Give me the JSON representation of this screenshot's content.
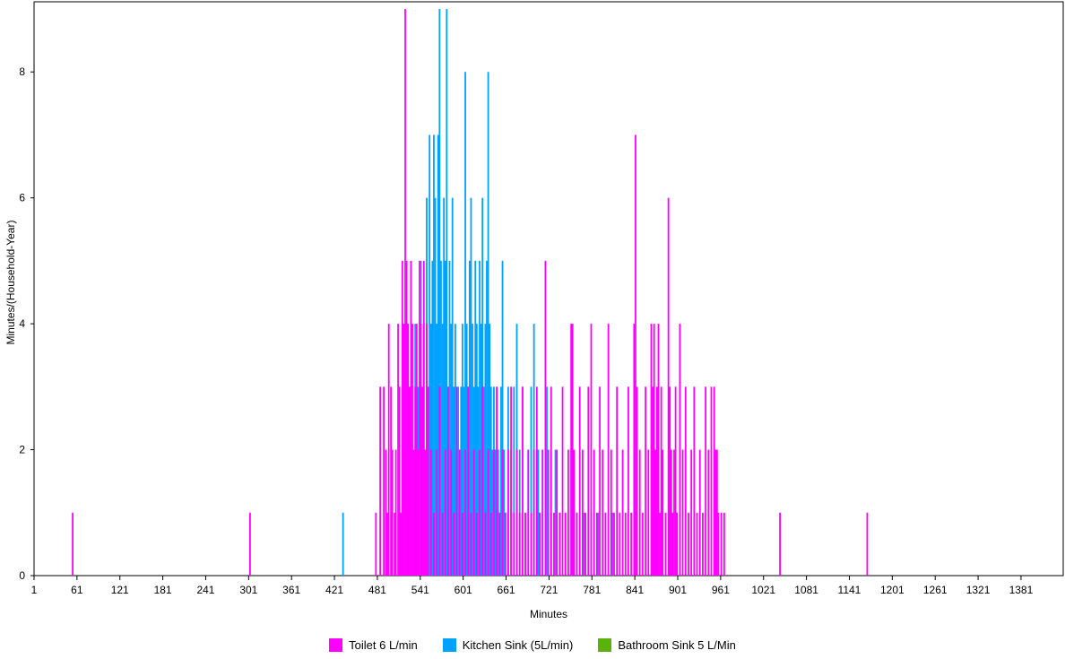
{
  "chart_data": {
    "type": "bar",
    "xlabel": "Minutes",
    "ylabel": "Minutes/(Household-Year)",
    "xlim": [
      1,
      1440
    ],
    "ylim": [
      0,
      9
    ],
    "x_ticks": [
      1,
      61,
      121,
      181,
      241,
      301,
      361,
      421,
      481,
      541,
      601,
      661,
      721,
      781,
      841,
      901,
      961,
      1021,
      1081,
      1141,
      1201,
      1261,
      1321,
      1381
    ],
    "y_ticks": [
      0,
      2,
      4,
      6,
      8
    ],
    "legend_position": "bottom",
    "series": [
      {
        "name": "Toilet 6 L/min",
        "color": "#FF00FF",
        "points": [
          [
            55,
            1
          ],
          [
            303,
            1
          ],
          [
            479,
            1
          ],
          [
            485,
            3
          ],
          [
            490,
            3
          ],
          [
            493,
            2
          ],
          [
            495,
            1
          ],
          [
            497,
            4
          ],
          [
            500,
            3
          ],
          [
            502,
            2
          ],
          [
            505,
            1
          ],
          [
            507,
            2
          ],
          [
            510,
            4
          ],
          [
            512,
            3
          ],
          [
            514,
            1
          ],
          [
            516,
            5
          ],
          [
            518,
            4
          ],
          [
            520,
            9
          ],
          [
            522,
            5
          ],
          [
            524,
            4
          ],
          [
            526,
            3
          ],
          [
            528,
            5
          ],
          [
            530,
            4
          ],
          [
            532,
            2
          ],
          [
            534,
            3
          ],
          [
            536,
            4
          ],
          [
            538,
            2
          ],
          [
            540,
            5
          ],
          [
            542,
            4
          ],
          [
            544,
            3
          ],
          [
            546,
            5
          ],
          [
            548,
            2
          ],
          [
            550,
            4
          ],
          [
            552,
            3
          ],
          [
            556,
            2
          ],
          [
            560,
            1
          ],
          [
            564,
            2
          ],
          [
            568,
            3
          ],
          [
            572,
            1
          ],
          [
            576,
            2
          ],
          [
            580,
            3
          ],
          [
            584,
            2
          ],
          [
            588,
            1
          ],
          [
            592,
            3
          ],
          [
            596,
            2
          ],
          [
            600,
            1
          ],
          [
            604,
            2
          ],
          [
            608,
            3
          ],
          [
            612,
            1
          ],
          [
            616,
            2
          ],
          [
            620,
            1
          ],
          [
            624,
            2
          ],
          [
            628,
            3
          ],
          [
            632,
            1
          ],
          [
            636,
            2
          ],
          [
            640,
            1
          ],
          [
            644,
            2
          ],
          [
            648,
            3
          ],
          [
            652,
            1
          ],
          [
            656,
            2
          ],
          [
            660,
            1
          ],
          [
            664,
            2
          ],
          [
            668,
            3
          ],
          [
            672,
            1
          ],
          [
            676,
            2
          ],
          [
            680,
            1
          ],
          [
            684,
            3
          ],
          [
            688,
            1
          ],
          [
            692,
            2
          ],
          [
            696,
            1
          ],
          [
            700,
            2
          ],
          [
            704,
            3
          ],
          [
            708,
            1
          ],
          [
            712,
            2
          ],
          [
            716,
            5
          ],
          [
            720,
            2
          ],
          [
            724,
            3
          ],
          [
            728,
            1
          ],
          [
            732,
            2
          ],
          [
            736,
            1
          ],
          [
            740,
            3
          ],
          [
            744,
            1
          ],
          [
            748,
            2
          ],
          [
            752,
            4
          ],
          [
            754,
            4
          ],
          [
            756,
            2
          ],
          [
            760,
            1
          ],
          [
            764,
            3
          ],
          [
            768,
            2
          ],
          [
            772,
            1
          ],
          [
            776,
            3
          ],
          [
            780,
            4
          ],
          [
            784,
            2
          ],
          [
            788,
            1
          ],
          [
            792,
            3
          ],
          [
            796,
            2
          ],
          [
            800,
            1
          ],
          [
            804,
            4
          ],
          [
            808,
            2
          ],
          [
            812,
            1
          ],
          [
            816,
            3
          ],
          [
            820,
            1
          ],
          [
            824,
            2
          ],
          [
            828,
            1
          ],
          [
            832,
            3
          ],
          [
            836,
            1
          ],
          [
            840,
            4
          ],
          [
            842,
            7
          ],
          [
            844,
            3
          ],
          [
            848,
            2
          ],
          [
            852,
            1
          ],
          [
            856,
            3
          ],
          [
            860,
            2
          ],
          [
            864,
            4
          ],
          [
            866,
            3
          ],
          [
            868,
            4
          ],
          [
            870,
            2
          ],
          [
            872,
            3
          ],
          [
            874,
            4
          ],
          [
            876,
            1
          ],
          [
            878,
            3
          ],
          [
            880,
            2
          ],
          [
            884,
            1
          ],
          [
            888,
            6
          ],
          [
            890,
            3
          ],
          [
            892,
            2
          ],
          [
            894,
            1
          ],
          [
            896,
            2
          ],
          [
            898,
            3
          ],
          [
            900,
            1
          ],
          [
            904,
            4
          ],
          [
            908,
            2
          ],
          [
            912,
            3
          ],
          [
            916,
            1
          ],
          [
            920,
            2
          ],
          [
            924,
            3
          ],
          [
            928,
            1
          ],
          [
            932,
            2
          ],
          [
            936,
            1
          ],
          [
            940,
            3
          ],
          [
            944,
            2
          ],
          [
            948,
            3
          ],
          [
            952,
            3
          ],
          [
            954,
            2
          ],
          [
            956,
            2
          ],
          [
            958,
            1
          ],
          [
            962,
            1
          ],
          [
            966,
            1
          ],
          [
            1044,
            1
          ],
          [
            1166,
            1
          ]
        ]
      },
      {
        "name": "Kitchen Sink (5L/min)",
        "color": "#00A2FF",
        "points": [
          [
            433,
            1
          ],
          [
            520,
            4
          ],
          [
            524,
            3
          ],
          [
            530,
            2
          ],
          [
            534,
            4
          ],
          [
            538,
            3
          ],
          [
            542,
            5
          ],
          [
            546,
            4
          ],
          [
            550,
            6
          ],
          [
            552,
            3
          ],
          [
            554,
            7
          ],
          [
            556,
            4
          ],
          [
            558,
            5
          ],
          [
            560,
            7
          ],
          [
            562,
            6
          ],
          [
            564,
            4
          ],
          [
            566,
            7
          ],
          [
            568,
            9
          ],
          [
            570,
            5
          ],
          [
            572,
            4
          ],
          [
            574,
            6
          ],
          [
            576,
            5
          ],
          [
            578,
            9
          ],
          [
            580,
            3
          ],
          [
            582,
            5
          ],
          [
            584,
            4
          ],
          [
            586,
            6
          ],
          [
            588,
            3
          ],
          [
            590,
            4
          ],
          [
            592,
            2
          ],
          [
            594,
            3
          ],
          [
            596,
            2
          ],
          [
            598,
            3
          ],
          [
            600,
            4
          ],
          [
            602,
            3
          ],
          [
            604,
            8
          ],
          [
            606,
            4
          ],
          [
            608,
            3
          ],
          [
            610,
            5
          ],
          [
            612,
            6
          ],
          [
            614,
            4
          ],
          [
            616,
            3
          ],
          [
            618,
            5
          ],
          [
            620,
            4
          ],
          [
            622,
            3
          ],
          [
            624,
            5
          ],
          [
            626,
            4
          ],
          [
            628,
            6
          ],
          [
            630,
            3
          ],
          [
            632,
            4
          ],
          [
            634,
            5
          ],
          [
            636,
            8
          ],
          [
            638,
            4
          ],
          [
            640,
            3
          ],
          [
            642,
            2
          ],
          [
            644,
            3
          ],
          [
            646,
            2
          ],
          [
            648,
            3
          ],
          [
            650,
            2
          ],
          [
            652,
            1
          ],
          [
            654,
            3
          ],
          [
            656,
            5
          ],
          [
            658,
            2
          ],
          [
            660,
            1
          ],
          [
            664,
            3
          ],
          [
            668,
            2
          ],
          [
            672,
            3
          ],
          [
            676,
            4
          ],
          [
            680,
            2
          ],
          [
            684,
            3
          ],
          [
            688,
            1
          ],
          [
            692,
            2
          ],
          [
            696,
            3
          ],
          [
            700,
            4
          ],
          [
            706,
            2
          ],
          [
            712,
            2
          ],
          [
            718,
            3
          ],
          [
            724,
            1
          ],
          [
            730,
            2
          ],
          [
            736,
            1
          ],
          [
            744,
            1
          ],
          [
            752,
            2
          ],
          [
            760,
            1
          ],
          [
            770,
            1
          ],
          [
            780,
            1
          ],
          [
            790,
            1
          ],
          [
            800,
            1
          ],
          [
            810,
            1
          ]
        ]
      },
      {
        "name": "Bathroom Sink 5 L/Min",
        "color": "#5BB20A",
        "points": []
      }
    ]
  }
}
